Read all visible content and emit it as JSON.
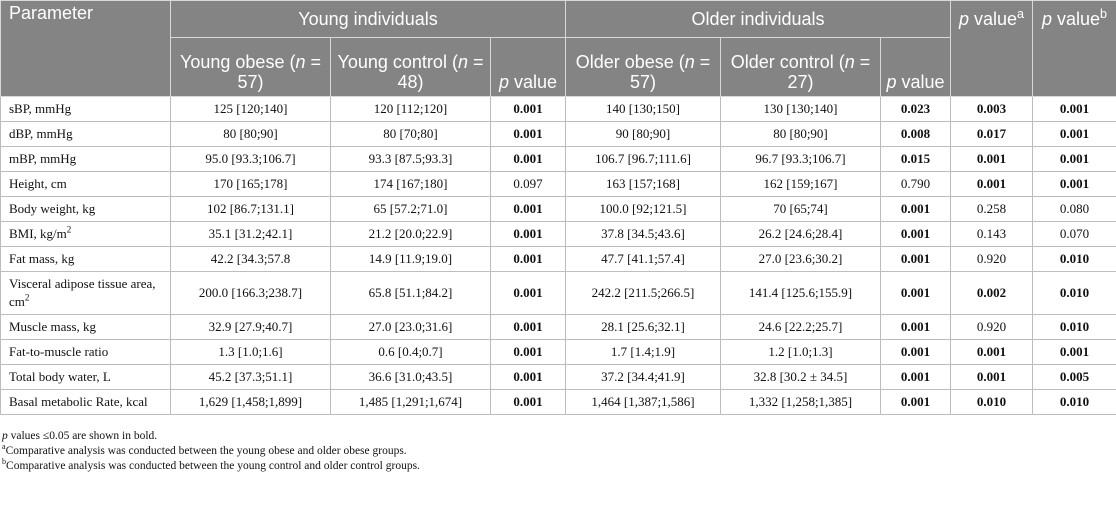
{
  "header": {
    "parameter": "Parameter",
    "groups": [
      "Young individuals",
      "Older individuals"
    ],
    "subcolumns": [
      [
        "Young obese (",
        {
          "text": "n",
          "style": "italic"
        },
        " = 57)"
      ],
      [
        "Young control (",
        {
          "text": "n",
          "style": "italic"
        },
        " = 48)"
      ],
      [
        {
          "text": "p",
          "style": "italic"
        },
        " value"
      ],
      [
        "Older obese (",
        {
          "text": "n",
          "style": "italic"
        },
        " = 57)"
      ],
      [
        "Older control (",
        {
          "text": "n",
          "style": "italic"
        },
        " = 27)"
      ],
      [
        {
          "text": "p",
          "style": "italic"
        },
        " value"
      ]
    ],
    "p_a": [
      {
        "text": "p",
        "style": "italic"
      },
      " value",
      {
        "text": "a",
        "style": "sup"
      }
    ],
    "p_b": [
      {
        "text": "p",
        "style": "italic"
      },
      " value",
      {
        "text": "b",
        "style": "sup"
      }
    ]
  },
  "table": {
    "rows": [
      {
        "parameter": [
          "sBP, mmHg"
        ],
        "cells": [
          "125 [120;140]",
          "120 [112;120]",
          "0.001",
          "140 [130;150]",
          "130 [130;140]",
          "0.023",
          "0.003",
          "0.001"
        ],
        "bold": [
          false,
          false,
          true,
          false,
          false,
          true,
          true,
          true
        ]
      },
      {
        "parameter": [
          "dBP, mmHg"
        ],
        "cells": [
          "80 [80;90]",
          "80 [70;80]",
          "0.001",
          "90 [80;90]",
          "80 [80;90]",
          "0.008",
          "0.017",
          "0.001"
        ],
        "bold": [
          false,
          false,
          true,
          false,
          false,
          true,
          true,
          true
        ]
      },
      {
        "parameter": [
          "mBP, mmHg"
        ],
        "cells": [
          "95.0 [93.3;106.7]",
          "93.3 [87.5;93.3]",
          "0.001",
          "106.7 [96.7;111.6]",
          "96.7 [93.3;106.7]",
          "0.015",
          "0.001",
          "0.001"
        ],
        "bold": [
          false,
          false,
          true,
          false,
          false,
          true,
          true,
          true
        ]
      },
      {
        "parameter": [
          "Height, cm"
        ],
        "cells": [
          "170 [165;178]",
          "174 [167;180]",
          "0.097",
          "163 [157;168]",
          "162 [159;167]",
          "0.790",
          "0.001",
          "0.001"
        ],
        "bold": [
          false,
          false,
          false,
          false,
          false,
          false,
          true,
          true
        ]
      },
      {
        "parameter": [
          "Body weight, kg"
        ],
        "cells": [
          "102 [86.7;131.1]",
          "65 [57.2;71.0]",
          "0.001",
          "100.0 [92;121.5]",
          "70 [65;74]",
          "0.001",
          "0.258",
          "0.080"
        ],
        "bold": [
          false,
          false,
          true,
          false,
          false,
          true,
          false,
          false
        ]
      },
      {
        "parameter": [
          "BMI, kg/m",
          {
            "text": "2",
            "style": "sup"
          }
        ],
        "cells": [
          "35.1 [31.2;42.1]",
          "21.2 [20.0;22.9]",
          "0.001",
          "37.8 [34.5;43.6]",
          "26.2 [24.6;28.4]",
          "0.001",
          "0.143",
          "0.070"
        ],
        "bold": [
          false,
          false,
          true,
          false,
          false,
          true,
          false,
          false
        ]
      },
      {
        "parameter": [
          "Fat mass, kg"
        ],
        "cells": [
          "42.2 [34.3;57.8",
          "14.9 [11.9;19.0]",
          "0.001",
          "47.7 [41.1;57.4]",
          "27.0 [23.6;30.2]",
          "0.001",
          "0.920",
          "0.010"
        ],
        "bold": [
          false,
          false,
          true,
          false,
          false,
          true,
          false,
          true
        ]
      },
      {
        "parameter": [
          "Visceral adipose tissue area, cm",
          {
            "text": "2",
            "style": "sup"
          }
        ],
        "cells": [
          "200.0 [166.3;238.7]",
          "65.8 [51.1;84.2]",
          "0.001",
          "242.2 [211.5;266.5]",
          "141.4 [125.6;155.9]",
          "0.001",
          "0.002",
          "0.010"
        ],
        "bold": [
          false,
          false,
          true,
          false,
          false,
          true,
          true,
          true
        ]
      },
      {
        "parameter": [
          "Muscle mass, kg"
        ],
        "cells": [
          "32.9 [27.9;40.7]",
          "27.0 [23.0;31.6]",
          "0.001",
          "28.1 [25.6;32.1]",
          "24.6 [22.2;25.7]",
          "0.001",
          "0.920",
          "0.010"
        ],
        "bold": [
          false,
          false,
          true,
          false,
          false,
          true,
          false,
          true
        ]
      },
      {
        "parameter": [
          "Fat-to-muscle ratio"
        ],
        "cells": [
          "1.3 [1.0;1.6]",
          "0.6 [0.4;0.7]",
          "0.001",
          "1.7 [1.4;1.9]",
          "1.2 [1.0;1.3]",
          "0.001",
          "0.001",
          "0.001"
        ],
        "bold": [
          false,
          false,
          true,
          false,
          false,
          true,
          true,
          true
        ]
      },
      {
        "parameter": [
          "Total body water, L"
        ],
        "cells": [
          "45.2 [37.3;51.1]",
          "36.6 [31.0;43.5]",
          "0.001",
          "37.2 [34.4;41.9]",
          "32.8 [30.2 ± 34.5]",
          "0.001",
          "0.001",
          "0.005"
        ],
        "bold": [
          false,
          false,
          true,
          false,
          false,
          true,
          true,
          true
        ]
      },
      {
        "parameter": [
          "Basal metabolic Rate, kcal"
        ],
        "cells": [
          "1,629 [1,458;1,899]",
          "1,485 [1,291;1,674]",
          "0.001",
          "1,464 [1,387;1,586]",
          "1,332 [1,258;1,385]",
          "0.001",
          "0.010",
          "0.010"
        ],
        "bold": [
          false,
          false,
          true,
          false,
          false,
          true,
          true,
          true
        ]
      }
    ]
  },
  "footnotes": [
    [
      {
        "text": "p",
        "style": "italic"
      },
      " values ≤0.05 are shown in bold."
    ],
    [
      {
        "text": "a",
        "style": "sup"
      },
      "Comparative analysis was conducted between the young obese and older obese groups."
    ],
    [
      {
        "text": "b",
        "style": "sup"
      },
      "Comparative analysis was conducted between the young control and older control groups."
    ]
  ]
}
